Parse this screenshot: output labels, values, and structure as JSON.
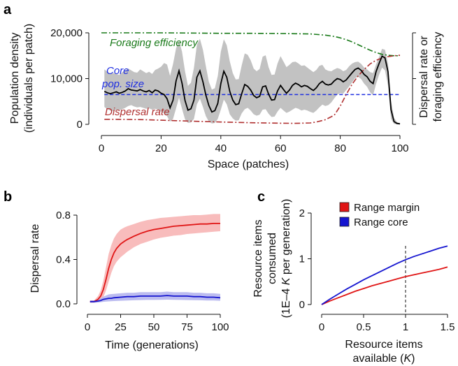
{
  "chart_data": [
    {
      "panel": "a",
      "type": "line",
      "xlabel": "Space (patches)",
      "ylabel_lines": [
        "Population density",
        "(individuals per patch)"
      ],
      "ylabel_right_lines": [
        "Dispersal rate or",
        "foraging efficiency"
      ],
      "xlim": [
        0,
        100
      ],
      "ylim": [
        0,
        20000
      ],
      "x_ticks": [
        0,
        20,
        40,
        60,
        80,
        100
      ],
      "y_ticks": [
        0,
        10000,
        20000
      ],
      "y_tick_labels": [
        "0",
        "10,000",
        "20,000"
      ],
      "annotations": {
        "foraging": "Foraging efficiency",
        "core_line1": "Core",
        "core_line2": "pop. size",
        "dispersal": "Dispersal rate"
      },
      "colors": {
        "density": "#000000",
        "band": "#c2c2c2",
        "foraging": "#1a7a1a",
        "core": "#1f2fe0",
        "dispersal": "#b03030"
      },
      "core_pop_size": 6500,
      "density": {
        "x": [
          1,
          2,
          3,
          4,
          5,
          6,
          7,
          8,
          9,
          10,
          11,
          12,
          13,
          14,
          15,
          16,
          17,
          18,
          19,
          20,
          21,
          22,
          23,
          24,
          25,
          26,
          27,
          28,
          29,
          30,
          31,
          32,
          33,
          34,
          35,
          36,
          37,
          38,
          39,
          40,
          41,
          42,
          43,
          44,
          45,
          46,
          47,
          48,
          49,
          50,
          51,
          52,
          53,
          54,
          55,
          56,
          57,
          58,
          59,
          60,
          61,
          62,
          63,
          64,
          65,
          66,
          67,
          68,
          69,
          70,
          71,
          72,
          73,
          74,
          75,
          76,
          77,
          78,
          79,
          80,
          81,
          82,
          83,
          84,
          85,
          86,
          87,
          88,
          89,
          90,
          91,
          92,
          93,
          94,
          95,
          96,
          97,
          98,
          99,
          100
        ],
        "mean": [
          7200,
          6900,
          6700,
          6900,
          7100,
          6800,
          7000,
          7300,
          7800,
          7500,
          7400,
          7300,
          7600,
          7300,
          7100,
          7400,
          6900,
          7500,
          7300,
          6800,
          6500,
          5600,
          3600,
          5300,
          9500,
          11700,
          9000,
          5200,
          3100,
          3400,
          5300,
          10300,
          11700,
          9300,
          6400,
          4100,
          2700,
          3000,
          4600,
          8900,
          11600,
          10300,
          7200,
          5300,
          4300,
          4500,
          6700,
          8700,
          8300,
          7500,
          6300,
          5800,
          6100,
          8200,
          8400,
          6600,
          5300,
          5400,
          7300,
          8500,
          7600,
          6800,
          7500,
          8500,
          9000,
          8700,
          8200,
          8500,
          8300,
          7800,
          7400,
          8000,
          8900,
          9400,
          8800,
          8600,
          8800,
          9500,
          10000,
          9800,
          9300,
          9700,
          10500,
          11300,
          12000,
          12300,
          11800,
          10900,
          10400,
          9400,
          8900,
          11500,
          13300,
          14900,
          14500,
          11500,
          3200,
          600,
          200,
          100
        ],
        "lower": [
          3800,
          3300,
          3000,
          2900,
          3200,
          3100,
          3300,
          3600,
          4000,
          4200,
          3900,
          3700,
          3800,
          3600,
          3400,
          3500,
          3200,
          3400,
          3200,
          2800,
          2400,
          1800,
          600,
          1200,
          3500,
          5800,
          3400,
          1100,
          300,
          400,
          1200,
          4400,
          5600,
          3800,
          1800,
          600,
          200,
          300,
          1200,
          3200,
          5400,
          4400,
          2200,
          1300,
          800,
          900,
          2400,
          3300,
          3600,
          3000,
          2200,
          1900,
          2100,
          3200,
          3300,
          2300,
          1600,
          1700,
          2800,
          3600,
          3000,
          2500,
          2800,
          3200,
          3600,
          3400,
          3000,
          3200,
          3000,
          2700,
          2500,
          3000,
          3700,
          4300,
          4000,
          4200,
          4800,
          5700,
          6500,
          6800,
          6700,
          7500,
          8300,
          9200,
          10100,
          10400,
          9900,
          8900,
          8200,
          7000,
          6400,
          8800,
          10800,
          12400,
          11800,
          8500,
          1200,
          100,
          0,
          0
        ],
        "upper": [
          12000,
          11500,
          11000,
          11200,
          11000,
          10800,
          11400,
          11800,
          12200,
          11800,
          11400,
          11300,
          12000,
          11600,
          11200,
          11500,
          11000,
          11900,
          12200,
          12600,
          13400,
          13100,
          10600,
          13200,
          16600,
          18300,
          15900,
          11600,
          8400,
          9100,
          12400,
          17400,
          18700,
          16300,
          12700,
          9300,
          7600,
          7900,
          10600,
          15900,
          18600,
          17300,
          13800,
          11200,
          9800,
          9900,
          12900,
          15500,
          15200,
          14000,
          12200,
          11600,
          12100,
          14800,
          15100,
          12500,
          10800,
          10900,
          13300,
          14900,
          13700,
          12500,
          13000,
          13600,
          13700,
          13300,
          12800,
          12900,
          12400,
          11900,
          11400,
          11900,
          12800,
          13000,
          12000,
          11700,
          11600,
          12000,
          12300,
          12100,
          11600,
          11900,
          12700,
          13300,
          13600,
          13700,
          13200,
          12400,
          12000,
          11400,
          11200,
          13100,
          14700,
          16500,
          16300,
          13300,
          5200,
          1400,
          500,
          200
        ]
      },
      "foraging_efficiency": {
        "x": [
          0,
          10,
          20,
          30,
          40,
          50,
          60,
          65,
          70,
          75,
          78,
          80,
          82,
          84,
          86,
          88,
          90,
          92,
          94,
          96,
          98,
          100
        ],
        "y": [
          20000,
          20000,
          20000,
          19950,
          19900,
          19900,
          19850,
          19800,
          19750,
          19500,
          19200,
          18900,
          18500,
          18000,
          17400,
          16800,
          16200,
          15700,
          15300,
          15100,
          15000,
          15000
        ]
      },
      "dispersal_rate": {
        "x": [
          1,
          5,
          10,
          15,
          20,
          25,
          30,
          40,
          50,
          60,
          65,
          70,
          72,
          75,
          78,
          80,
          82,
          84,
          86,
          88,
          90,
          92,
          94,
          96,
          98,
          100
        ],
        "y": [
          1100,
          1100,
          1050,
          1000,
          900,
          800,
          700,
          500,
          350,
          250,
          220,
          300,
          500,
          1000,
          2000,
          4000,
          6500,
          8800,
          10600,
          12000,
          13200,
          14000,
          14500,
          14800,
          15000,
          15100
        ]
      }
    },
    {
      "panel": "b",
      "type": "line",
      "xlabel": "Time (generations)",
      "ylabel": "Dispersal rate",
      "xlim": [
        0,
        100
      ],
      "ylim": [
        0,
        0.85
      ],
      "x_ticks": [
        0,
        25,
        50,
        75,
        100
      ],
      "y_ticks": [
        0,
        0.4,
        0.8
      ],
      "y_tick_labels": [
        "0.0",
        "0.4",
        "0.8"
      ],
      "series": [
        {
          "name": "Range margin",
          "color": "#e01515",
          "band_color": "#f7b5b5",
          "x": [
            2,
            5,
            8,
            10,
            12,
            14,
            16,
            18,
            20,
            22,
            25,
            28,
            30,
            35,
            40,
            45,
            50,
            55,
            60,
            65,
            70,
            75,
            80,
            85,
            90,
            95,
            100
          ],
          "y": [
            0.02,
            0.02,
            0.04,
            0.07,
            0.13,
            0.22,
            0.32,
            0.4,
            0.46,
            0.5,
            0.54,
            0.565,
            0.58,
            0.61,
            0.635,
            0.655,
            0.67,
            0.68,
            0.69,
            0.7,
            0.705,
            0.71,
            0.715,
            0.72,
            0.72,
            0.725,
            0.725
          ],
          "lower": [
            0.01,
            0.01,
            0.02,
            0.03,
            0.06,
            0.12,
            0.2,
            0.28,
            0.34,
            0.38,
            0.42,
            0.45,
            0.47,
            0.51,
            0.54,
            0.56,
            0.58,
            0.595,
            0.605,
            0.615,
            0.62,
            0.63,
            0.635,
            0.64,
            0.645,
            0.65,
            0.655
          ],
          "upper": [
            0.03,
            0.03,
            0.07,
            0.12,
            0.21,
            0.33,
            0.45,
            0.53,
            0.59,
            0.63,
            0.67,
            0.69,
            0.7,
            0.72,
            0.74,
            0.755,
            0.765,
            0.775,
            0.78,
            0.785,
            0.79,
            0.795,
            0.8,
            0.8,
            0.805,
            0.81,
            0.81
          ]
        },
        {
          "name": "Range core",
          "color": "#1515d0",
          "band_color": "#b5b5ee",
          "x": [
            2,
            5,
            8,
            10,
            12,
            14,
            16,
            18,
            20,
            25,
            30,
            35,
            40,
            45,
            50,
            55,
            60,
            65,
            70,
            75,
            80,
            85,
            90,
            95,
            100
          ],
          "y": [
            0.02,
            0.02,
            0.025,
            0.03,
            0.04,
            0.045,
            0.05,
            0.05,
            0.055,
            0.06,
            0.065,
            0.065,
            0.07,
            0.07,
            0.07,
            0.07,
            0.075,
            0.07,
            0.07,
            0.07,
            0.065,
            0.065,
            0.06,
            0.06,
            0.055
          ],
          "lower": [
            0.01,
            0.01,
            0.012,
            0.015,
            0.018,
            0.02,
            0.022,
            0.024,
            0.025,
            0.028,
            0.03,
            0.032,
            0.034,
            0.035,
            0.035,
            0.036,
            0.038,
            0.036,
            0.035,
            0.034,
            0.033,
            0.032,
            0.03,
            0.03,
            0.028
          ],
          "upper": [
            0.03,
            0.03,
            0.04,
            0.05,
            0.065,
            0.075,
            0.085,
            0.088,
            0.09,
            0.095,
            0.1,
            0.1,
            0.105,
            0.105,
            0.105,
            0.105,
            0.11,
            0.105,
            0.105,
            0.105,
            0.1,
            0.1,
            0.095,
            0.095,
            0.09
          ]
        }
      ]
    },
    {
      "panel": "c",
      "type": "line",
      "xlabel_lines": [
        "Resource items",
        "available (K)"
      ],
      "ylabel_lines": [
        "Resource items",
        "consumed",
        "(1E–4 K per generation)"
      ],
      "xlim": [
        0,
        1.5
      ],
      "ylim": [
        0,
        2
      ],
      "x_ticks": [
        0,
        0.5,
        1,
        1.5
      ],
      "x_tick_labels": [
        "0",
        "0.5",
        "1",
        "1.5"
      ],
      "y_ticks": [
        0,
        1,
        2
      ],
      "y_tick_labels": [
        "0",
        "1",
        "2"
      ],
      "reference_x": 1,
      "series": [
        {
          "name": "Range margin",
          "color": "#e01515",
          "x": [
            0,
            0.1,
            0.2,
            0.3,
            0.4,
            0.5,
            0.6,
            0.7,
            0.8,
            0.9,
            1.0,
            1.1,
            1.2,
            1.3,
            1.4,
            1.5
          ],
          "y": [
            0,
            0.08,
            0.15,
            0.22,
            0.29,
            0.35,
            0.41,
            0.46,
            0.51,
            0.56,
            0.61,
            0.65,
            0.69,
            0.73,
            0.77,
            0.82
          ]
        },
        {
          "name": "Range core",
          "color": "#1515d0",
          "x": [
            0,
            0.1,
            0.2,
            0.3,
            0.4,
            0.5,
            0.6,
            0.7,
            0.8,
            0.9,
            1.0,
            1.1,
            1.2,
            1.3,
            1.4,
            1.5
          ],
          "y": [
            0,
            0.12,
            0.23,
            0.34,
            0.44,
            0.54,
            0.63,
            0.72,
            0.81,
            0.9,
            0.98,
            1.05,
            1.11,
            1.17,
            1.23,
            1.28
          ]
        }
      ]
    }
  ]
}
